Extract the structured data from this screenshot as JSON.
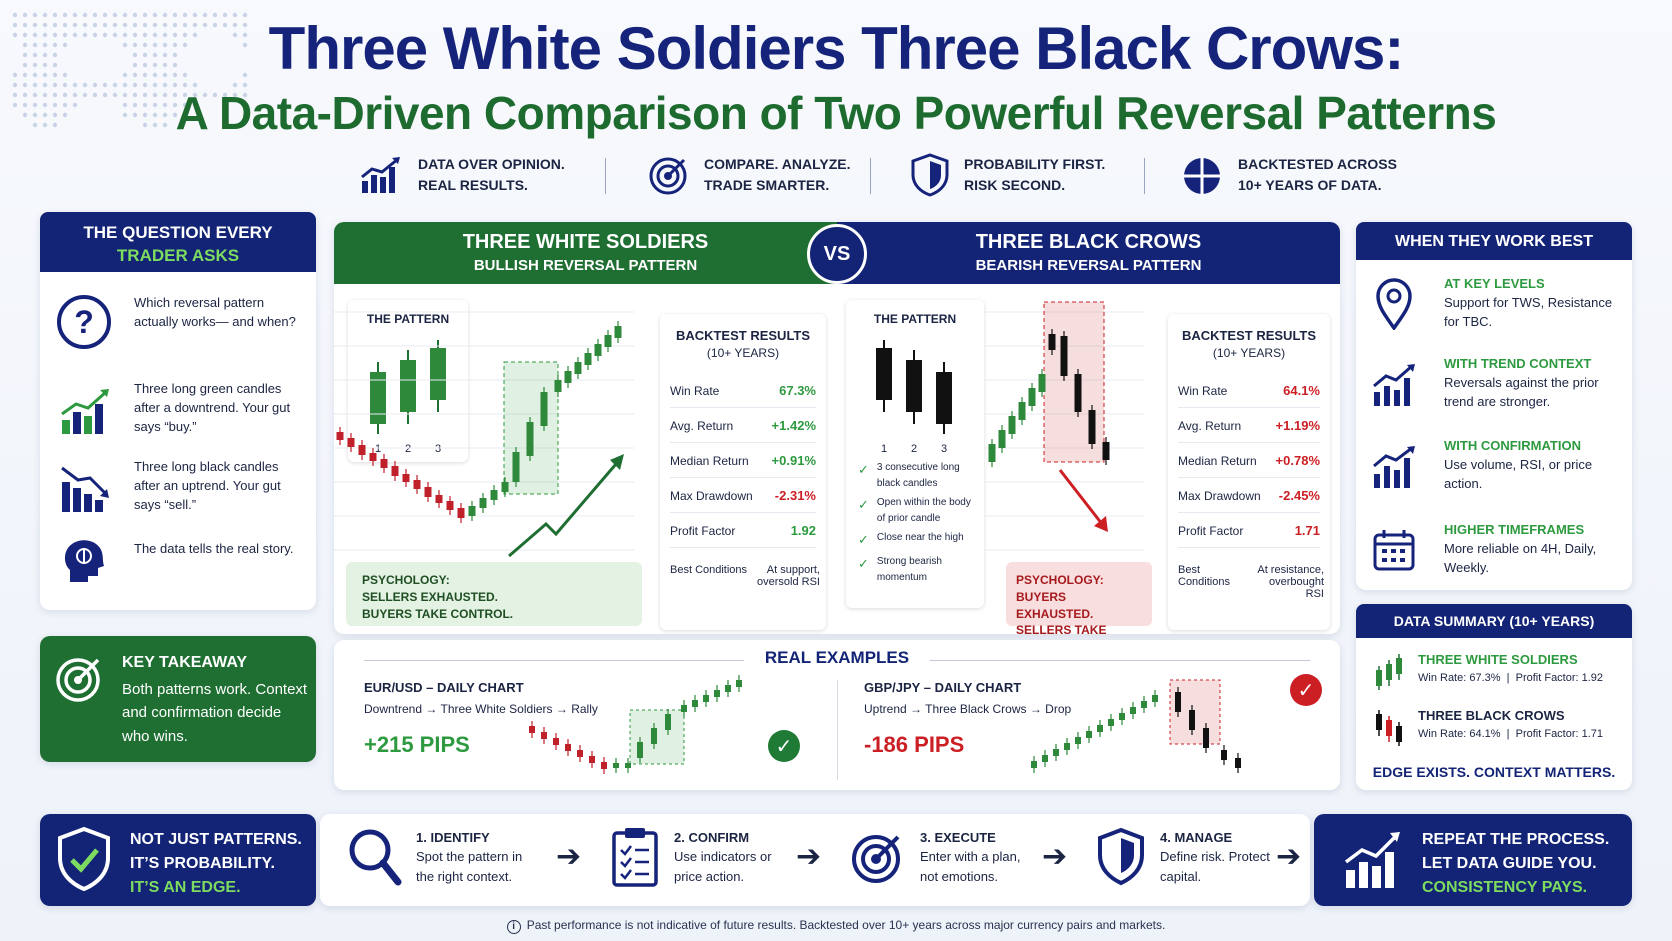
{
  "header": {
    "title": "Three White Soldiers Three Black Crows:",
    "subtitle": "A Data-Driven Comparison of Two Powerful Reversal Patterns"
  },
  "taglines": [
    {
      "icon": "bar-chart-icon",
      "line1": "DATA OVER OPINION.",
      "line2": "REAL RESULTS."
    },
    {
      "icon": "target-icon",
      "line1": "COMPARE. ANALYZE.",
      "line2": "TRADE SMARTER."
    },
    {
      "icon": "shield-icon",
      "line1": "PROBABILITY FIRST.",
      "line2": "RISK SECOND."
    },
    {
      "icon": "pie-chart-icon",
      "line1": "BACKTESTED ACROSS",
      "line2": "10+ YEARS OF DATA."
    }
  ],
  "question": {
    "title1": "THE QUESTION EVERY",
    "title2": "TRADER ASKS",
    "items": [
      {
        "icon": "question-icon",
        "text": "Which reversal pattern actually works— and when?"
      },
      {
        "icon": "rising-chart-icon",
        "text": "Three long green candles after a downtrend. Your gut says “buy.”"
      },
      {
        "icon": "falling-chart-icon",
        "text": "Three long black candles after an uptrend. Your gut says “sell.”"
      },
      {
        "icon": "head-brain-icon",
        "text": "The data tells the real story."
      }
    ]
  },
  "takeaway": {
    "title": "KEY TAKEAWAY",
    "text": "Both patterns work. Context and confirmation decide who wins."
  },
  "edge": {
    "line1": "NOT JUST PATTERNS.",
    "line2": "IT’S PROBABILITY.",
    "line3": "IT’S AN EDGE."
  },
  "tws": {
    "title": "THREE WHITE SOLDIERS",
    "subtitle": "BULLISH REVERSAL PATTERN",
    "pattern_label": "THE PATTERN",
    "candle_labels": [
      "1",
      "2",
      "3"
    ],
    "psychology": [
      "PSYCHOLOGY:",
      "SELLERS EXHAUSTED.",
      "BUYERS TAKE CONTROL."
    ]
  },
  "vs_label": "VS",
  "tbc": {
    "title": "THREE BLACK CROWS",
    "subtitle": "BEARISH REVERSAL PATTERN",
    "pattern_label": "THE PATTERN",
    "candle_labels": [
      "1",
      "2",
      "3"
    ],
    "criteria": [
      "3 consecutive long black candles",
      "Open within the body of prior candle",
      "Close near the high",
      "Strong bearish momentum"
    ],
    "psychology": [
      "PSYCHOLOGY:",
      "BUYERS EXHAUSTED.",
      "SELLERS TAKE CONTROL."
    ]
  },
  "backtest_tws": {
    "title1": "BACKTEST RESULTS",
    "title2": "(10+ YEARS)",
    "rows": [
      {
        "label": "Win Rate",
        "value": "67.3%",
        "color": "#2e9a3f"
      },
      {
        "label": "Avg. Return",
        "value": "+1.42%",
        "color": "#2e9a3f"
      },
      {
        "label": "Median Return",
        "value": "+0.91%",
        "color": "#2e9a3f"
      },
      {
        "label": "Max Drawdown",
        "value": "-2.31%",
        "color": "#cc1f24"
      },
      {
        "label": "Profit Factor",
        "value": "1.92",
        "color": "#2e9a3f"
      }
    ],
    "best_label": "Best Conditions",
    "best_value": "At support, oversold RSI"
  },
  "backtest_tbc": {
    "title1": "BACKTEST RESULTS",
    "title2": "(10+ YEARS)",
    "rows": [
      {
        "label": "Win Rate",
        "value": "64.1%",
        "color": "#cc1f24"
      },
      {
        "label": "Avg. Return",
        "value": "+1.19%",
        "color": "#cc1f24"
      },
      {
        "label": "Median Return",
        "value": "+0.78%",
        "color": "#cc1f24"
      },
      {
        "label": "Max Drawdown",
        "value": "-2.45%",
        "color": "#cc1f24"
      },
      {
        "label": "Profit Factor",
        "value": "1.71",
        "color": "#cc1f24"
      }
    ],
    "best_label": "Best Conditions",
    "best_value": "At resistance, overbought RSI"
  },
  "examples": {
    "title": "REAL EXAMPLES",
    "left": {
      "pair": "EUR/USD – DAILY CHART",
      "desc": "Downtrend → Three White Soldiers → Rally",
      "pips": "+215 PIPS"
    },
    "right": {
      "pair": "GBP/JPY – DAILY CHART",
      "desc": "Uptrend → Three Black Crows → Drop",
      "pips": "-186 PIPS"
    }
  },
  "work_best": {
    "title": "WHEN THEY WORK BEST",
    "items": [
      {
        "icon": "location-pin-icon",
        "title": "AT KEY LEVELS",
        "text": "Support for TWS, Resistance for TBC."
      },
      {
        "icon": "trend-chart-icon",
        "title": "WITH TREND CONTEXT",
        "text": "Reversals against the prior trend are stronger."
      },
      {
        "icon": "confirm-chart-icon",
        "title": "WITH CONFIRMATION",
        "text": "Use volume, RSI, or price action."
      },
      {
        "icon": "calendar-icon",
        "title": "HIGHER TIMEFRAMES",
        "text": "More reliable on 4H, Daily, Weekly."
      }
    ]
  },
  "summary": {
    "title": "DATA SUMMARY (10+ YEARS)",
    "tws_name": "THREE WHITE SOLDIERS",
    "tws_stats": "Win Rate: 67.3%  |  Profit Factor: 1.92",
    "tbc_name": "THREE BLACK CROWS",
    "tbc_stats": "Win Rate: 64.1%  |  Profit Factor: 1.71",
    "footer": "EDGE EXISTS. CONTEXT MATTERS."
  },
  "steps": [
    {
      "icon": "magnifier-icon",
      "title": "1. IDENTIFY",
      "text": "Spot the pattern in the right context."
    },
    {
      "icon": "clipboard-icon",
      "title": "2. CONFIRM",
      "text": "Use indicators or price action."
    },
    {
      "icon": "target-icon",
      "title": "3. EXECUTE",
      "text": "Enter with a plan, not emotions."
    },
    {
      "icon": "shield-icon",
      "title": "4. MANAGE",
      "text": "Define risk. Protect capital."
    }
  ],
  "repeat": {
    "line1": "REPEAT THE PROCESS.",
    "line2": "LET DATA GUIDE YOU.",
    "line3": "CONSISTENCY PAYS."
  },
  "disclaimer": "Past performance is not indicative of future results. Backtested over 10+ years across major currency pairs and markets.",
  "colors": {
    "navy": "#132476",
    "green": "#1f6f33",
    "bull": "#2e9a3f",
    "bear": "#cc1f24"
  }
}
